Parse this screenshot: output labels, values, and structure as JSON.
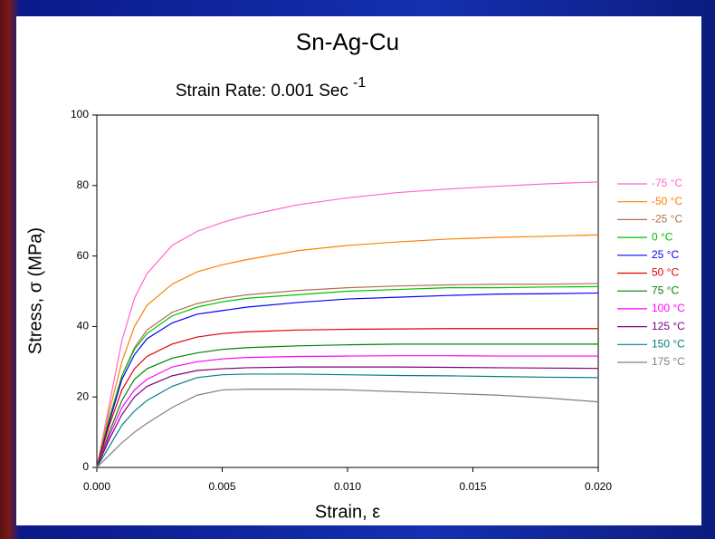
{
  "chart_data": {
    "type": "line",
    "title": "Sn-Ag-Cu",
    "subtitle": "Strain Rate: 0.001 Sec",
    "subtitle_superscript": "-1",
    "x_label": "Strain, ε",
    "y_label": "Stress, σ (MPa)",
    "x": [
      0,
      0.0005,
      0.001,
      0.0015,
      0.002,
      0.003,
      0.004,
      0.005,
      0.006,
      0.008,
      0.01,
      0.012,
      0.014,
      0.016,
      0.018,
      0.02
    ],
    "series": [
      {
        "name": "-75 °C",
        "color": "#ff66cc",
        "values": [
          0,
          18,
          36,
          48,
          55,
          63,
          67,
          69.5,
          71.5,
          74.5,
          76.5,
          78,
          79,
          79.8,
          80.5,
          81
        ]
      },
      {
        "name": "-50 °C",
        "color": "#ff8000",
        "values": [
          0,
          16,
          30,
          40,
          46,
          52,
          55.5,
          57.5,
          59,
          61.5,
          63,
          64,
          64.8,
          65.3,
          65.6,
          66
        ]
      },
      {
        "name": "-25 °C",
        "color": "#b07050",
        "values": [
          0,
          14,
          26,
          34,
          39,
          44,
          46.5,
          48,
          49,
          50.2,
          51,
          51.5,
          51.8,
          52,
          52,
          52.2
        ]
      },
      {
        "name": "0 °C",
        "color": "#00c000",
        "values": [
          0,
          14,
          26,
          33.5,
          38,
          43,
          45.5,
          47,
          48,
          49,
          50,
          50.5,
          51,
          51,
          51.2,
          51.3
        ]
      },
      {
        "name": "25 °C",
        "color": "#0000ff",
        "values": [
          0,
          13,
          25,
          32,
          36.5,
          41,
          43.5,
          44.5,
          45.5,
          46.8,
          47.8,
          48.3,
          48.8,
          49.2,
          49.3,
          49.5
        ]
      },
      {
        "name": "50 °C",
        "color": "#e00000",
        "values": [
          0,
          12,
          22,
          28,
          31.5,
          35,
          37,
          38,
          38.5,
          39,
          39.2,
          39.3,
          39.4,
          39.4,
          39.4,
          39.4
        ]
      },
      {
        "name": "75 °C",
        "color": "#008000",
        "values": [
          0,
          10,
          19,
          25,
          28,
          31,
          32.5,
          33.5,
          34,
          34.5,
          34.8,
          35,
          35,
          35,
          35,
          35
        ]
      },
      {
        "name": "100 °C",
        "color": "#ff00ff",
        "values": [
          0,
          9,
          17,
          22,
          25,
          28.5,
          30,
          30.8,
          31.2,
          31.5,
          31.6,
          31.7,
          31.7,
          31.6,
          31.6,
          31.6
        ]
      },
      {
        "name": "125 °C",
        "color": "#800080",
        "values": [
          0,
          8,
          15,
          20,
          23,
          26,
          27.5,
          28,
          28.3,
          28.5,
          28.5,
          28.5,
          28.4,
          28.3,
          28.2,
          28.1
        ]
      },
      {
        "name": "150 °C",
        "color": "#008080",
        "values": [
          0,
          6,
          12,
          16,
          19,
          23,
          25.5,
          26.3,
          26.5,
          26.5,
          26.3,
          26.1,
          26,
          25.8,
          25.6,
          25.5
        ]
      },
      {
        "name": "175 °C",
        "color": "#808080",
        "values": [
          0,
          3.5,
          7,
          10,
          12.5,
          17,
          20.5,
          22,
          22.2,
          22.2,
          22,
          21.5,
          21,
          20.5,
          19.7,
          18.6
        ]
      }
    ],
    "xlim": [
      0,
      0.02
    ],
    "xticks": [
      {
        "value": 0,
        "label": "0.000"
      },
      {
        "value": 0.005,
        "label": "0.005"
      },
      {
        "value": 0.01,
        "label": "0.010"
      },
      {
        "value": 0.015,
        "label": "0.015"
      },
      {
        "value": 0.02,
        "label": "0.020"
      }
    ],
    "ylim": [
      0,
      100
    ],
    "yticks": [
      0,
      20,
      40,
      60,
      80,
      100
    ],
    "grid": false,
    "legend": "right"
  }
}
